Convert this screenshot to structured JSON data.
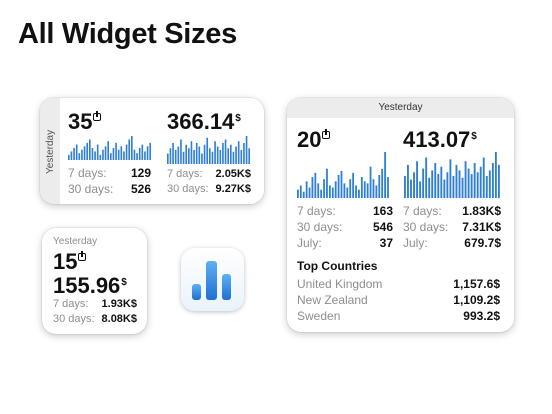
{
  "page_title": "All Widget Sizes",
  "colors": {
    "bar": "#2f7fd3",
    "text_gray": "#8e8e93"
  },
  "medium_widget": {
    "side_label": "Yesterday",
    "downloads": "35",
    "revenue": "366.14",
    "currency": "$",
    "left_rows": [
      {
        "label": "7 days:",
        "value": "129"
      },
      {
        "label": "30 days:",
        "value": "526"
      }
    ],
    "right_rows": [
      {
        "label": "7 days:",
        "value": "2.05K$"
      },
      {
        "label": "30 days:",
        "value": "9.27K$"
      }
    ],
    "left_bars": [
      3,
      5,
      7,
      9,
      4,
      6,
      8,
      10,
      12,
      7,
      5,
      9,
      3,
      6,
      8,
      11,
      4,
      7,
      10,
      6,
      8,
      5,
      9,
      12,
      14,
      6,
      4,
      7,
      9,
      5,
      8,
      10
    ],
    "right_bars": [
      6,
      9,
      12,
      8,
      10,
      14,
      7,
      11,
      9,
      13,
      8,
      12,
      10,
      6,
      11,
      15,
      9,
      7,
      13,
      10,
      8,
      12,
      14,
      9,
      11,
      7,
      10,
      13,
      8,
      12,
      16,
      9
    ]
  },
  "small_widget": {
    "header": "Yesterday",
    "downloads": "15",
    "revenue": "155.96",
    "currency": "$",
    "rows": [
      {
        "label": "7 days:",
        "value": "1.93K$"
      },
      {
        "label": "30 days:",
        "value": "8.08K$"
      }
    ]
  },
  "app_icon": {
    "name": "analytics-app-icon"
  },
  "large_widget": {
    "header": "Yesterday",
    "downloads": "20",
    "revenue": "413.07",
    "currency": "$",
    "left_rows": [
      {
        "label": "7 days:",
        "value": "163"
      },
      {
        "label": "30 days:",
        "value": "546"
      },
      {
        "label": "July:",
        "value": "37"
      }
    ],
    "right_rows": [
      {
        "label": "7 days:",
        "value": "1.83K$"
      },
      {
        "label": "30 days:",
        "value": "7.31K$"
      },
      {
        "label": "July:",
        "value": "679.7$"
      }
    ],
    "left_bars": [
      4,
      6,
      3,
      8,
      5,
      10,
      12,
      7,
      4,
      9,
      14,
      6,
      5,
      8,
      11,
      13,
      7,
      5,
      9,
      12,
      6,
      4,
      10,
      8,
      7,
      15,
      9,
      6,
      11,
      14,
      22,
      10
    ],
    "right_bars": [
      12,
      18,
      10,
      14,
      20,
      9,
      16,
      22,
      11,
      15,
      19,
      13,
      17,
      10,
      14,
      21,
      12,
      18,
      15,
      11,
      20,
      16,
      13,
      19,
      14,
      17,
      22,
      12,
      15,
      19,
      25,
      18
    ],
    "top_countries_title": "Top Countries",
    "countries": [
      {
        "name": "United Kingdom",
        "value": "1,157.6$"
      },
      {
        "name": "New Zealand",
        "value": "1,109.2$"
      },
      {
        "name": "Sweden",
        "value": "993.2$"
      }
    ]
  }
}
